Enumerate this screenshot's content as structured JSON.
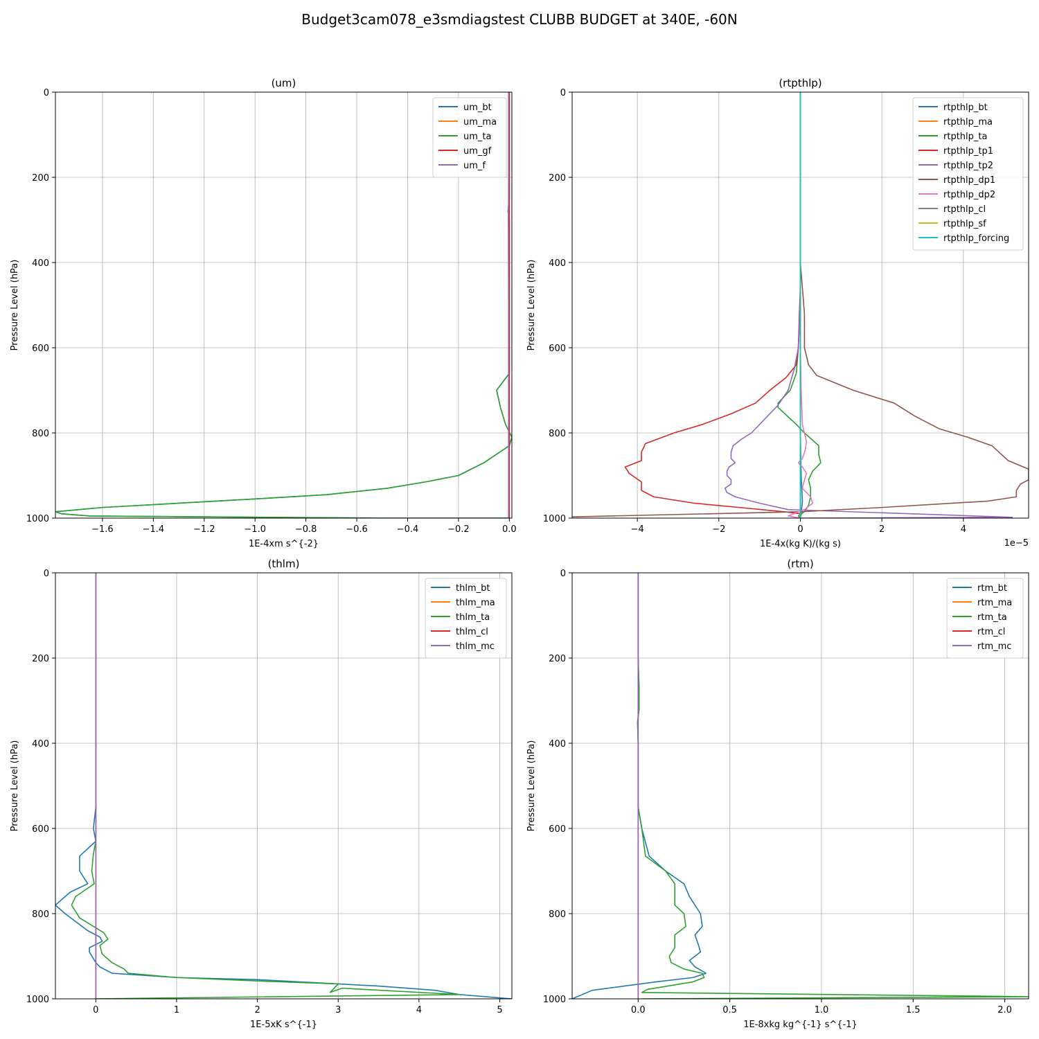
{
  "figure": {
    "suptitle": "Budget3cam078_e3smdiagstest CLUBB BUDGET at 340E, -60N"
  },
  "colors": {
    "c0": "#1f77b4",
    "c1": "#ff7f0e",
    "c2": "#2ca02c",
    "c3": "#d62728",
    "c4": "#9467bd",
    "c5": "#8c564b",
    "c6": "#e377c2",
    "c7": "#7f7f7f",
    "c8": "#bcbd22",
    "c9": "#17becf",
    "grid": "#b0b0b0"
  },
  "chart_data": [
    {
      "type": "line",
      "title": "(um)",
      "xlabel": "1E-4xm s^{-2}",
      "ylabel": "Pressure Level (hPa)",
      "xlim": [
        -1.785,
        0.01
      ],
      "ylim": [
        1000,
        0
      ],
      "x_offset_label": "",
      "grid": true,
      "legend": "upper right",
      "xticks": [
        -1.6,
        -1.4,
        -1.2,
        -1.0,
        -0.8,
        -0.6,
        -0.4,
        -0.2,
        0.0
      ],
      "xtick_labels": [
        "−1.6",
        "−1.4",
        "−1.2",
        "−1.0",
        "−0.8",
        "−0.6",
        "−0.4",
        "−0.2",
        "0.0"
      ],
      "yticks": [
        0,
        200,
        400,
        600,
        800,
        1000
      ],
      "ytick_labels": [
        "0",
        "200",
        "400",
        "600",
        "800",
        "1000"
      ],
      "series": [
        {
          "name": "um_bt",
          "color": "#1f77b4",
          "x": [
            0,
            0,
            0,
            0,
            -0.005,
            0,
            0,
            0,
            0,
            0,
            -0.05,
            -0.035,
            -0.015,
            0.01,
            0,
            -0.05,
            -0.1,
            -0.15,
            -0.2,
            -0.33,
            -0.48,
            -0.72,
            -1.0,
            -1.3,
            -1.6,
            -1.785,
            -1.76,
            -1.65,
            -0.5,
            0
          ],
          "p": [
            0,
            100,
            200,
            250,
            280,
            300,
            400,
            500,
            600,
            660,
            700,
            740,
            780,
            810,
            830,
            850,
            870,
            885,
            900,
            915,
            930,
            945,
            955,
            965,
            975,
            985,
            990,
            995,
            1000,
            1000
          ]
        },
        {
          "name": "um_ma",
          "color": "#ff7f0e",
          "x": [
            0,
            0,
            0,
            0,
            0
          ],
          "p": [
            0,
            250,
            500,
            750,
            1000
          ]
        },
        {
          "name": "um_ta",
          "color": "#2ca02c",
          "x": [
            0,
            0,
            0,
            0,
            -0.005,
            0,
            0,
            0,
            0,
            0,
            -0.05,
            -0.035,
            -0.015,
            0.01,
            0,
            -0.05,
            -0.1,
            -0.15,
            -0.2,
            -0.33,
            -0.48,
            -0.72,
            -1.0,
            -1.3,
            -1.6,
            -1.785,
            -1.76,
            -1.65,
            -0.5,
            0
          ],
          "p": [
            0,
            100,
            200,
            250,
            280,
            300,
            400,
            500,
            600,
            660,
            700,
            740,
            780,
            810,
            830,
            850,
            870,
            885,
            900,
            915,
            930,
            945,
            955,
            965,
            975,
            985,
            990,
            995,
            1000,
            1000
          ]
        },
        {
          "name": "um_gf",
          "color": "#d62728",
          "x": [
            0,
            0,
            0,
            0,
            0
          ],
          "p": [
            0,
            250,
            500,
            750,
            1000
          ]
        },
        {
          "name": "um_f",
          "color": "#9467bd",
          "x": [
            -0.003,
            -0.003,
            -0.003,
            -0.004,
            -0.003,
            -0.003,
            -0.003,
            -0.003
          ],
          "p": [
            0,
            200,
            250,
            300,
            500,
            700,
            900,
            1000
          ]
        }
      ]
    },
    {
      "type": "line",
      "title": "(rtpthlp)",
      "xlabel": "1E-4x(kg K)/(kg s)",
      "ylabel": "Pressure Level (hPa)",
      "xlim": [
        -5.6,
        5.6
      ],
      "ylim": [
        1000,
        0
      ],
      "x_offset_label": "1e−5",
      "grid": true,
      "legend": "upper right",
      "xticks": [
        -4,
        -2,
        0,
        2,
        4
      ],
      "xtick_labels": [
        "−4",
        "−2",
        "0",
        "2",
        "4"
      ],
      "yticks": [
        0,
        200,
        400,
        600,
        800,
        1000
      ],
      "ytick_labels": [
        "0",
        "200",
        "400",
        "600",
        "800",
        "1000"
      ],
      "series": [
        {
          "name": "rtpthlp_bt",
          "color": "#1f77b4",
          "x": [
            0,
            0,
            0,
            0,
            0.02,
            0.05,
            0.02,
            0
          ],
          "p": [
            0,
            300,
            600,
            800,
            900,
            960,
            990,
            1000
          ]
        },
        {
          "name": "rtpthlp_ma",
          "color": "#ff7f0e",
          "x": [
            0,
            0,
            0,
            0
          ],
          "p": [
            0,
            300,
            700,
            1000
          ]
        },
        {
          "name": "rtpthlp_ta",
          "color": "#2ca02c",
          "x": [
            0,
            0,
            -0.05,
            -0.1,
            -0.25,
            -0.55,
            -0.55,
            -0.1,
            0.1,
            0.45,
            0.45,
            0.5,
            0.3,
            0.2,
            0.25,
            0.25,
            0.2,
            0.1,
            -0.05,
            0
          ],
          "p": [
            0,
            500,
            600,
            660,
            700,
            730,
            740,
            780,
            800,
            830,
            850,
            870,
            890,
            910,
            930,
            950,
            970,
            985,
            995,
            1000
          ]
        },
        {
          "name": "rtpthlp_tp1",
          "color": "#d62728",
          "x": [
            0,
            0,
            -0.05,
            -0.1,
            -0.35,
            -0.75,
            -1.1,
            -1.7,
            -2.4,
            -3.1,
            -3.8,
            -3.9,
            -3.9,
            -4.3,
            -4.2,
            -3.9,
            -3.9,
            -3.6,
            -2.6,
            -1.5,
            -0.4,
            0
          ],
          "p": [
            0,
            450,
            600,
            640,
            670,
            700,
            730,
            755,
            780,
            800,
            825,
            845,
            865,
            880,
            895,
            915,
            935,
            950,
            965,
            975,
            985,
            990
          ]
        },
        {
          "name": "rtpthlp_tp2",
          "color": "#9467bd",
          "x": [
            0,
            0,
            -0.05,
            -0.15,
            -0.3,
            -0.55,
            -0.9,
            -1.05,
            -1.2,
            -1.45,
            -1.65,
            -1.7,
            -1.7,
            -1.6,
            -1.75,
            -1.8,
            -1.8,
            -1.7,
            -1.7,
            -1.85,
            -1.8,
            -1.6,
            -1.0,
            -0.3,
            5.2,
            0
          ],
          "p": [
            0,
            500,
            600,
            650,
            700,
            735,
            770,
            785,
            800,
            815,
            830,
            845,
            860,
            870,
            880,
            890,
            900,
            910,
            920,
            930,
            940,
            950,
            965,
            980,
            998,
            1000
          ]
        },
        {
          "name": "rtpthlp_dp1",
          "color": "#8c564b",
          "x": [
            0,
            0,
            0.05,
            0.1,
            0.1,
            0.2,
            0.4,
            1.3,
            2.3,
            2.8,
            3.4,
            4.1,
            4.7,
            5.1,
            5.6,
            5.6,
            5.4,
            5.3,
            5.3,
            4.6,
            2.0,
            0,
            -5.6
          ],
          "p": [
            0,
            400,
            460,
            520,
            600,
            640,
            665,
            700,
            730,
            760,
            790,
            810,
            830,
            865,
            885,
            910,
            920,
            935,
            950,
            960,
            975,
            985,
            997
          ]
        },
        {
          "name": "rtpthlp_dp2",
          "color": "#e377c2",
          "x": [
            0,
            0,
            0.02,
            0.05,
            0.15,
            0.12,
            0.05,
            -0.05,
            0.05,
            0.15,
            0.1,
            0.05,
            0.25,
            0.3,
            0.1,
            -0.3,
            0
          ],
          "p": [
            0,
            600,
            700,
            780,
            820,
            840,
            860,
            870,
            880,
            895,
            910,
            930,
            950,
            965,
            980,
            995,
            1000
          ]
        },
        {
          "name": "rtpthlp_cl",
          "color": "#7f7f7f",
          "x": [
            0,
            0,
            0
          ],
          "p": [
            0,
            500,
            1000
          ]
        },
        {
          "name": "rtpthlp_sf",
          "color": "#bcbd22",
          "x": [
            0,
            0,
            0
          ],
          "p": [
            0,
            500,
            1000
          ]
        },
        {
          "name": "rtpthlp_forcing",
          "color": "#17becf",
          "x": [
            0,
            0,
            0,
            0
          ],
          "p": [
            0,
            300,
            700,
            1000
          ]
        }
      ]
    },
    {
      "type": "line",
      "title": "(thlm)",
      "xlabel": "1E-5xK s^{-1}",
      "ylabel": "Pressure Level (hPa)",
      "xlim": [
        -0.5,
        5.15
      ],
      "ylim": [
        1000,
        0
      ],
      "x_offset_label": "",
      "grid": true,
      "legend": "upper right",
      "xticks": [
        0,
        1,
        2,
        3,
        4,
        5
      ],
      "xtick_labels": [
        "0",
        "1",
        "2",
        "3",
        "4",
        "5"
      ],
      "yticks": [
        0,
        200,
        400,
        600,
        800,
        1000
      ],
      "ytick_labels": [
        "0",
        "200",
        "400",
        "600",
        "800",
        "1000"
      ],
      "series": [
        {
          "name": "thlm_bt",
          "color": "#1f77b4",
          "x": [
            0,
            0,
            0,
            0,
            0,
            -0.03,
            0,
            -0.2,
            -0.2,
            -0.1,
            -0.32,
            -0.5,
            -0.38,
            -0.1,
            0.05,
            0.08,
            -0.08,
            -0.08,
            0,
            0.05,
            0.2,
            1.0,
            2.0,
            3.0,
            3.5,
            4.2,
            4.5,
            5.15
          ],
          "p": [
            0,
            300,
            400,
            500,
            550,
            600,
            630,
            665,
            700,
            730,
            750,
            780,
            800,
            840,
            855,
            865,
            880,
            890,
            915,
            925,
            940,
            950,
            955,
            965,
            970,
            980,
            990,
            1000
          ]
        },
        {
          "name": "thlm_ma",
          "color": "#ff7f0e",
          "x": [
            0,
            0,
            0
          ],
          "p": [
            0,
            500,
            1000
          ]
        },
        {
          "name": "thlm_ta",
          "color": "#2ca02c",
          "x": [
            0,
            0,
            0,
            0,
            -0.03,
            -0.05,
            -0.02,
            -0.25,
            -0.3,
            -0.2,
            0.1,
            0.15,
            0.05,
            0.08,
            0.2,
            0.35,
            0.4,
            1.0,
            2.0,
            3.0,
            2.9,
            3.05,
            4.5,
            -0.02
          ],
          "p": [
            0,
            300,
            500,
            630,
            660,
            700,
            730,
            760,
            780,
            810,
            845,
            860,
            875,
            895,
            915,
            930,
            940,
            950,
            958,
            965,
            985,
            975,
            990,
            1000
          ]
        },
        {
          "name": "thlm_cl",
          "color": "#d62728",
          "x": [
            0,
            0,
            0
          ],
          "p": [
            0,
            500,
            1000
          ]
        },
        {
          "name": "thlm_mc",
          "color": "#9467bd",
          "x": [
            0,
            0,
            0
          ],
          "p": [
            0,
            500,
            1000
          ]
        }
      ]
    },
    {
      "type": "line",
      "title": "(rtm)",
      "xlabel": "1E-8xkg kg^{-1} s^{-1}",
      "ylabel": "Pressure Level (hPa)",
      "xlim": [
        -0.36,
        2.13
      ],
      "ylim": [
        1000,
        0
      ],
      "x_offset_label": "",
      "grid": true,
      "legend": "upper right",
      "xticks": [
        0.0,
        0.5,
        1.0,
        1.5,
        2.0
      ],
      "xtick_labels": [
        "0.0",
        "0.5",
        "1.0",
        "1.5",
        "2.0"
      ],
      "yticks": [
        0,
        200,
        400,
        600,
        800,
        1000
      ],
      "ytick_labels": [
        "0",
        "200",
        "400",
        "600",
        "800",
        "1000"
      ],
      "series": [
        {
          "name": "rtm_bt",
          "color": "#1f77b4",
          "x": [
            0,
            0,
            0.005,
            0.005,
            -0.003,
            0,
            0,
            0.02,
            0.06,
            0.15,
            0.25,
            0.28,
            0.34,
            0.35,
            0.31,
            0.33,
            0.34,
            0.28,
            0.31,
            0.37,
            0.3,
            0.1,
            -0.25,
            -0.36
          ],
          "p": [
            0,
            200,
            270,
            320,
            350,
            400,
            550,
            600,
            665,
            700,
            730,
            760,
            800,
            830,
            850,
            875,
            890,
            910,
            925,
            940,
            950,
            960,
            980,
            1000
          ]
        },
        {
          "name": "rtm_ma",
          "color": "#ff7f0e",
          "x": [
            0,
            0,
            0
          ],
          "p": [
            0,
            500,
            1000
          ]
        },
        {
          "name": "rtm_ta",
          "color": "#2ca02c",
          "x": [
            0,
            0,
            0.005,
            0.005,
            -0.003,
            0,
            0,
            0.02,
            0.04,
            0.15,
            0.2,
            0.2,
            0.25,
            0.26,
            0.2,
            0.2,
            0.17,
            0.18,
            0.25,
            0.35,
            0.36,
            0.3,
            0.05,
            0.02,
            2.13,
            0.02
          ],
          "p": [
            0,
            200,
            270,
            320,
            350,
            400,
            550,
            600,
            665,
            700,
            730,
            780,
            800,
            830,
            850,
            880,
            900,
            915,
            930,
            940,
            950,
            960,
            978,
            985,
            995,
            1000
          ]
        },
        {
          "name": "rtm_cl",
          "color": "#d62728",
          "x": [
            0,
            0,
            0
          ],
          "p": [
            0,
            500,
            1000
          ]
        },
        {
          "name": "rtm_mc",
          "color": "#9467bd",
          "x": [
            0,
            0,
            0
          ],
          "p": [
            0,
            500,
            1000
          ]
        }
      ]
    }
  ]
}
